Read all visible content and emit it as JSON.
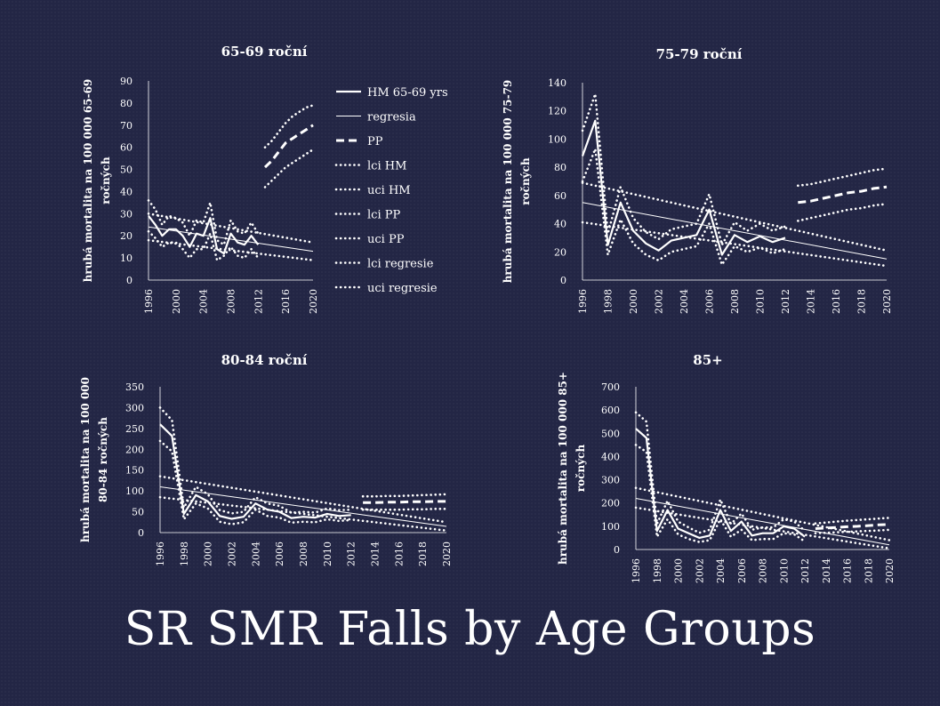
{
  "slide": {
    "title": "SR SMR Falls by Age Groups"
  },
  "legend": [
    {
      "label": "HM 65-69 yrs",
      "style": "solid-thick"
    },
    {
      "label": "regresia",
      "style": "solid-thin"
    },
    {
      "label": "PP",
      "style": "dashed"
    },
    {
      "label": "lci HM",
      "style": "dotted"
    },
    {
      "label": "uci HM",
      "style": "dotted"
    },
    {
      "label": "lci PP",
      "style": "dotted"
    },
    {
      "label": "uci PP",
      "style": "dotted"
    },
    {
      "label": "lci regresie",
      "style": "dotted"
    },
    {
      "label": "uci regresie",
      "style": "dotted"
    }
  ],
  "chart_data": [
    {
      "type": "line",
      "title": "65-69 roční",
      "ylabel": "hrubá mortalita na 100 000 65-69 ročných",
      "ylim": [
        0,
        90
      ],
      "yticks": [
        0,
        10,
        20,
        30,
        40,
        50,
        60,
        70,
        80,
        90
      ],
      "xrange": [
        1996,
        2020
      ],
      "xticks": [
        1996,
        2000,
        2004,
        2008,
        2012,
        2016,
        2020
      ],
      "series": [
        {
          "name": "HM 65-69 yrs",
          "style": "solid-thick",
          "x": [
            1996,
            1997,
            1998,
            1999,
            2000,
            2001,
            2002,
            2003,
            2004,
            2005,
            2006,
            2007,
            2008,
            2009,
            2010,
            2011,
            2012
          ],
          "y": [
            29,
            25,
            20,
            23,
            23,
            20,
            15,
            21,
            20,
            28,
            14,
            12,
            21,
            17,
            16,
            20,
            16
          ]
        },
        {
          "name": "regresia",
          "style": "solid-thin",
          "x": [
            1996,
            2020
          ],
          "y": [
            24,
            13
          ]
        },
        {
          "name": "PP",
          "style": "dashed",
          "x": [
            2013,
            2014,
            2015,
            2016,
            2017,
            2018,
            2019,
            2020
          ],
          "y": [
            51,
            54,
            58,
            62,
            64,
            66,
            68,
            70
          ]
        },
        {
          "name": "lci HM",
          "style": "dotted",
          "x": [
            1996,
            1997,
            1998,
            1999,
            2000,
            2001,
            2002,
            2003,
            2004,
            2005,
            2006,
            2007,
            2008,
            2009,
            2010,
            2011,
            2012
          ],
          "y": [
            22,
            19,
            15,
            17,
            17,
            14,
            10,
            14,
            14,
            21,
            9,
            11,
            15,
            11,
            10,
            14,
            10
          ]
        },
        {
          "name": "uci HM",
          "style": "dotted",
          "x": [
            1996,
            1997,
            1998,
            1999,
            2000,
            2001,
            2002,
            2003,
            2004,
            2005,
            2006,
            2007,
            2008,
            2009,
            2010,
            2011,
            2012
          ],
          "y": [
            36,
            32,
            25,
            29,
            28,
            26,
            20,
            27,
            26,
            35,
            18,
            16,
            27,
            22,
            21,
            26,
            21
          ]
        },
        {
          "name": "lci PP",
          "style": "dotted",
          "x": [
            2013,
            2014,
            2015,
            2016,
            2017,
            2018,
            2019,
            2020
          ],
          "y": [
            42,
            45,
            48,
            51,
            53,
            55,
            57,
            59
          ]
        },
        {
          "name": "uci PP",
          "style": "dotted",
          "x": [
            2013,
            2014,
            2015,
            2016,
            2017,
            2018,
            2019,
            2020
          ],
          "y": [
            60,
            63,
            67,
            71,
            74,
            76,
            78,
            79
          ]
        },
        {
          "name": "lci regresie",
          "style": "dotted",
          "x": [
            1996,
            2020
          ],
          "y": [
            18,
            9
          ]
        },
        {
          "name": "uci regresie",
          "style": "dotted",
          "x": [
            1996,
            2020
          ],
          "y": [
            30,
            17
          ]
        }
      ]
    },
    {
      "type": "line",
      "title": "75-79 roční",
      "ylabel": "hrubá mortalita na 100 000 75-79 ročných",
      "ylim": [
        0,
        140
      ],
      "yticks": [
        0,
        20,
        40,
        60,
        80,
        100,
        120,
        140
      ],
      "xrange": [
        1996,
        2020
      ],
      "xticks": [
        1996,
        1998,
        2000,
        2002,
        2004,
        2006,
        2008,
        2010,
        2012,
        2014,
        2016,
        2018,
        2020
      ],
      "series": [
        {
          "name": "HM",
          "style": "solid-thick",
          "x": [
            1996,
            1997,
            1998,
            1999,
            2000,
            2001,
            2002,
            2003,
            2004,
            2005,
            2006,
            2007,
            2008,
            2009,
            2010,
            2011,
            2012
          ],
          "y": [
            88,
            113,
            25,
            55,
            35,
            26,
            21,
            28,
            30,
            32,
            50,
            18,
            32,
            27,
            31,
            27,
            30
          ]
        },
        {
          "name": "regresia",
          "style": "solid-thin",
          "x": [
            1996,
            2020
          ],
          "y": [
            55,
            15
          ]
        },
        {
          "name": "PP",
          "style": "dashed",
          "x": [
            2013,
            2014,
            2015,
            2016,
            2017,
            2018,
            2019,
            2020
          ],
          "y": [
            55,
            56,
            58,
            60,
            62,
            63,
            65,
            66
          ]
        },
        {
          "name": "lci HM",
          "style": "dotted",
          "x": [
            1996,
            1997,
            1998,
            1999,
            2000,
            2001,
            2002,
            2003,
            2004,
            2005,
            2006,
            2007,
            2008,
            2009,
            2010,
            2011,
            2012
          ],
          "y": [
            70,
            93,
            18,
            43,
            26,
            18,
            14,
            20,
            22,
            24,
            40,
            11,
            24,
            20,
            23,
            19,
            22
          ]
        },
        {
          "name": "uci HM",
          "style": "dotted",
          "x": [
            1996,
            1997,
            1998,
            1999,
            2000,
            2001,
            2002,
            2003,
            2004,
            2005,
            2006,
            2007,
            2008,
            2009,
            2010,
            2011,
            2012
          ],
          "y": [
            106,
            132,
            33,
            66,
            44,
            34,
            29,
            36,
            38,
            40,
            61,
            25,
            41,
            35,
            40,
            35,
            38
          ]
        },
        {
          "name": "lci PP",
          "style": "dotted",
          "x": [
            2013,
            2014,
            2015,
            2016,
            2017,
            2018,
            2019,
            2020
          ],
          "y": [
            42,
            44,
            46,
            48,
            50,
            51,
            53,
            54
          ]
        },
        {
          "name": "uci PP",
          "style": "dotted",
          "x": [
            2013,
            2014,
            2015,
            2016,
            2017,
            2018,
            2019,
            2020
          ],
          "y": [
            67,
            68,
            70,
            72,
            74,
            76,
            78,
            79
          ]
        },
        {
          "name": "lci regresie",
          "style": "dotted",
          "x": [
            1996,
            2020
          ],
          "y": [
            41,
            10
          ]
        },
        {
          "name": "uci regresie",
          "style": "dotted",
          "x": [
            1996,
            2020
          ],
          "y": [
            69,
            21
          ]
        }
      ]
    },
    {
      "type": "line",
      "title": "80-84 roční",
      "ylabel": "hrubá mortalita na 100 000 80-84 ročných",
      "ylim": [
        0,
        350
      ],
      "yticks": [
        0,
        50,
        100,
        150,
        200,
        250,
        300,
        350
      ],
      "xrange": [
        1996,
        2020
      ],
      "xticks": [
        1996,
        1998,
        2000,
        2002,
        2004,
        2006,
        2008,
        2010,
        2012,
        2014,
        2016,
        2018,
        2020
      ],
      "series": [
        {
          "name": "HM",
          "style": "solid-thick",
          "x": [
            1996,
            1997,
            1998,
            1999,
            2000,
            2001,
            2002,
            2003,
            2004,
            2005,
            2006,
            2007,
            2008,
            2009,
            2010,
            2011,
            2012
          ],
          "y": [
            260,
            232,
            45,
            90,
            75,
            40,
            33,
            38,
            70,
            55,
            50,
            35,
            38,
            36,
            45,
            40,
            42
          ]
        },
        {
          "name": "regresia",
          "style": "solid-thin",
          "x": [
            1996,
            2020
          ],
          "y": [
            110,
            15
          ]
        },
        {
          "name": "PP",
          "style": "dashed",
          "x": [
            2013,
            2014,
            2015,
            2016,
            2017,
            2018,
            2019,
            2020
          ],
          "y": [
            72,
            72,
            73,
            73,
            74,
            74,
            75,
            75
          ]
        },
        {
          "name": "lci HM",
          "style": "dotted",
          "x": [
            1996,
            1997,
            1998,
            1999,
            2000,
            2001,
            2002,
            2003,
            2004,
            2005,
            2006,
            2007,
            2008,
            2009,
            2010,
            2011,
            2012
          ],
          "y": [
            220,
            195,
            32,
            70,
            58,
            26,
            20,
            25,
            55,
            40,
            36,
            24,
            26,
            25,
            32,
            28,
            30
          ]
        },
        {
          "name": "uci HM",
          "style": "dotted",
          "x": [
            1996,
            1997,
            1998,
            1999,
            2000,
            2001,
            2002,
            2003,
            2004,
            2005,
            2006,
            2007,
            2008,
            2009,
            2010,
            2011,
            2012
          ],
          "y": [
            300,
            270,
            60,
            110,
            92,
            54,
            46,
            50,
            85,
            70,
            64,
            48,
            50,
            48,
            58,
            54,
            55
          ]
        },
        {
          "name": "lci PP",
          "style": "dotted",
          "x": [
            2013,
            2014,
            2015,
            2016,
            2017,
            2018,
            2019,
            2020
          ],
          "y": [
            55,
            55,
            55,
            55,
            56,
            56,
            57,
            57
          ]
        },
        {
          "name": "uci PP",
          "style": "dotted",
          "x": [
            2013,
            2014,
            2015,
            2016,
            2017,
            2018,
            2019,
            2020
          ],
          "y": [
            87,
            87,
            88,
            88,
            89,
            90,
            91,
            92
          ]
        },
        {
          "name": "lci regresie",
          "style": "dotted",
          "x": [
            1996,
            2020
          ],
          "y": [
            85,
            5
          ]
        },
        {
          "name": "uci regresie",
          "style": "dotted",
          "x": [
            1996,
            2020
          ],
          "y": [
            135,
            25
          ]
        }
      ]
    },
    {
      "type": "line",
      "title": "85+",
      "ylabel": "hrubá mortalita na 100 000 85+ ročných",
      "ylim": [
        0,
        700
      ],
      "yticks": [
        0,
        100,
        200,
        300,
        400,
        500,
        600,
        700
      ],
      "xrange": [
        1996,
        2020
      ],
      "xticks": [
        1996,
        1998,
        2000,
        2002,
        2004,
        2006,
        2008,
        2010,
        2012,
        2014,
        2016,
        2018,
        2020
      ],
      "series": [
        {
          "name": "HM",
          "style": "solid-thick",
          "x": [
            1996,
            1997,
            1998,
            1999,
            2000,
            2001,
            2002,
            2003,
            2004,
            2005,
            2006,
            2007,
            2008,
            2009,
            2010,
            2011,
            2012
          ],
          "y": [
            520,
            480,
            80,
            170,
            90,
            70,
            50,
            60,
            170,
            80,
            120,
            60,
            70,
            70,
            100,
            90,
            55
          ]
        },
        {
          "name": "regresia",
          "style": "solid-thin",
          "x": [
            1996,
            2020
          ],
          "y": [
            220,
            20
          ]
        },
        {
          "name": "PP",
          "style": "dashed",
          "x": [
            2013,
            2014,
            2015,
            2016,
            2017,
            2018,
            2019,
            2020
          ],
          "y": [
            90,
            92,
            95,
            98,
            100,
            103,
            106,
            108
          ]
        },
        {
          "name": "lci HM",
          "style": "dotted",
          "x": [
            1996,
            1997,
            1998,
            1999,
            2000,
            2001,
            2002,
            2003,
            2004,
            2005,
            2006,
            2007,
            2008,
            2009,
            2010,
            2011,
            2012
          ],
          "y": [
            450,
            420,
            55,
            130,
            65,
            45,
            32,
            40,
            130,
            55,
            85,
            40,
            45,
            45,
            70,
            65,
            35
          ]
        },
        {
          "name": "uci HM",
          "style": "dotted",
          "x": [
            1996,
            1997,
            1998,
            1999,
            2000,
            2001,
            2002,
            2003,
            2004,
            2005,
            2006,
            2007,
            2008,
            2009,
            2010,
            2011,
            2012
          ],
          "y": [
            590,
            550,
            110,
            210,
            120,
            95,
            72,
            85,
            215,
            110,
            155,
            85,
            95,
            95,
            130,
            120,
            80
          ]
        },
        {
          "name": "lci PP",
          "style": "dotted",
          "x": [
            2013,
            2014,
            2015,
            2016,
            2017,
            2018,
            2019,
            2020
          ],
          "y": [
            70,
            72,
            74,
            76,
            78,
            80,
            82,
            85
          ]
        },
        {
          "name": "uci PP",
          "style": "dotted",
          "x": [
            2013,
            2014,
            2015,
            2016,
            2017,
            2018,
            2019,
            2020
          ],
          "y": [
            112,
            116,
            120,
            124,
            127,
            130,
            133,
            136
          ]
        },
        {
          "name": "lci regresie",
          "style": "dotted",
          "x": [
            1996,
            2020
          ],
          "y": [
            180,
            5
          ]
        },
        {
          "name": "uci regresie",
          "style": "dotted",
          "x": [
            1996,
            2020
          ],
          "y": [
            265,
            40
          ]
        }
      ]
    }
  ]
}
